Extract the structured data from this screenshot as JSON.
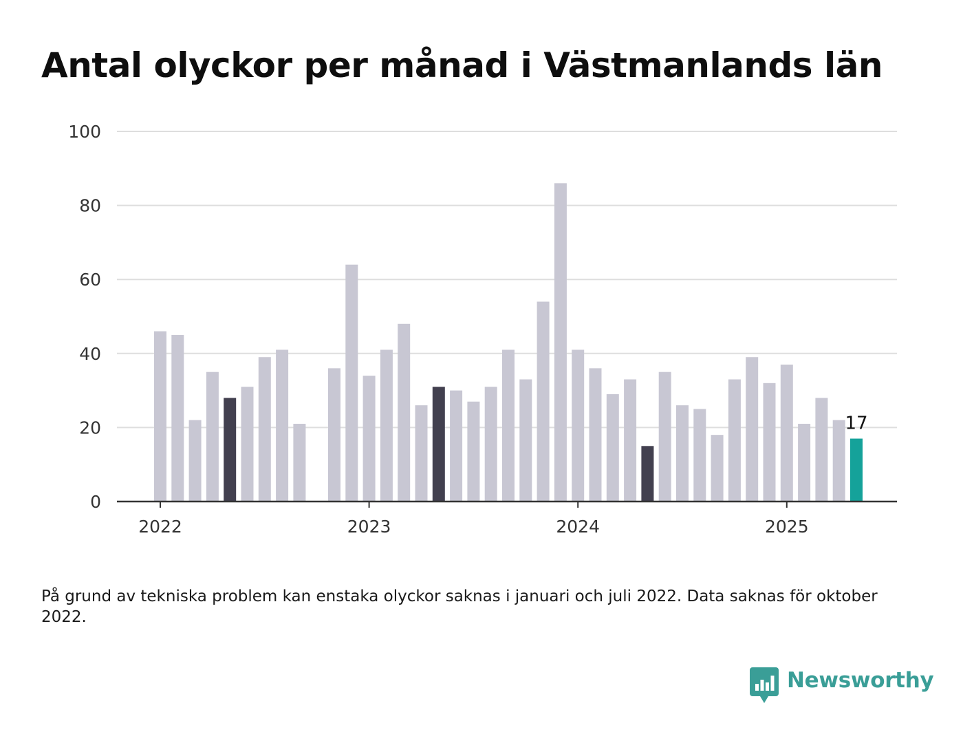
{
  "title": "Antal olyckor per månad i Västmanlands län",
  "note": "På grund av tekniska problem kan enstaka olyckor saknas i januari och juli 2022. Data saknas för oktober 2022.",
  "brand": {
    "name": "Newsworthy",
    "color": "#3a9e97",
    "icon": "bar-chart-speech-bubble-icon"
  },
  "colors": {
    "default_bar": "#c8c7d3",
    "highlight_bar": "#42404f",
    "latest_bar": "#15a29a",
    "grid": "#dedede",
    "axis": "#333333"
  },
  "chart_data": {
    "type": "bar",
    "ylim": [
      0,
      100
    ],
    "y_ticks": [
      0,
      20,
      40,
      60,
      80,
      100
    ],
    "x_tick_labels": [
      "2022",
      "2023",
      "2024",
      "2025"
    ],
    "grid": true,
    "legend": "none",
    "annotation": "17",
    "series": [
      {
        "categories": [
          "2022-01",
          "2022-02",
          "2022-03",
          "2022-04",
          "2022-05",
          "2022-06",
          "2022-07",
          "2022-08",
          "2022-09",
          "2022-10",
          "2022-11",
          "2022-12",
          "2023-01",
          "2023-02",
          "2023-03",
          "2023-04",
          "2023-05",
          "2023-06",
          "2023-07",
          "2023-08",
          "2023-09",
          "2023-10",
          "2023-11",
          "2023-12",
          "2024-01",
          "2024-02",
          "2024-03",
          "2024-04",
          "2024-05",
          "2024-06",
          "2024-07",
          "2024-08",
          "2024-09",
          "2024-10",
          "2024-11",
          "2024-12",
          "2025-01",
          "2025-02",
          "2025-03",
          "2025-04",
          "2025-05"
        ],
        "values": [
          46,
          45,
          22,
          35,
          28,
          31,
          39,
          41,
          21,
          null,
          36,
          64,
          34,
          41,
          48,
          26,
          31,
          30,
          27,
          31,
          41,
          33,
          54,
          86,
          41,
          36,
          29,
          33,
          15,
          35,
          26,
          25,
          18,
          33,
          39,
          32,
          37,
          21,
          28,
          22,
          17
        ],
        "highlight": [
          "2022-05",
          "2023-05",
          "2024-05"
        ],
        "latest": "2025-05"
      }
    ]
  }
}
